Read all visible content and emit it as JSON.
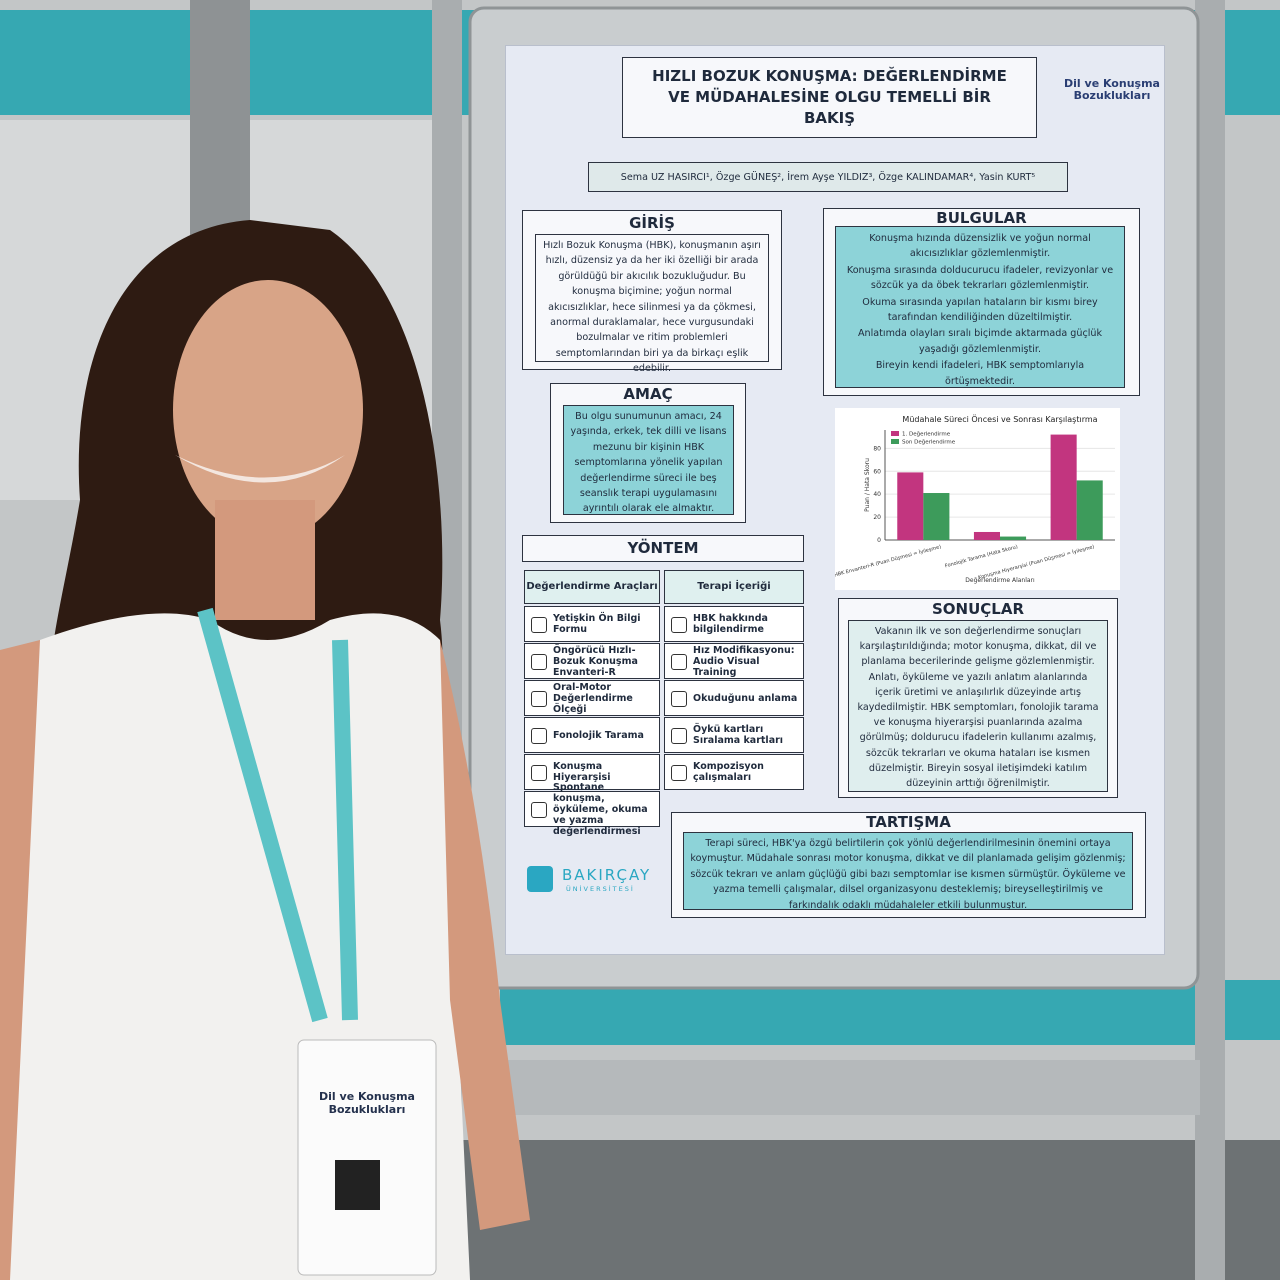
{
  "badge": {
    "title": "Dil ve Konuşma Bozuklukları"
  },
  "poster": {
    "title": "HIZLI BOZUK KONUŞMA: DEĞERLENDİRME VE MÜDAHALESİNE OLGU TEMELLİ BİR BAKIŞ",
    "congress": "Dil ve Konuşma Bozuklukları",
    "authors": "Sema UZ HASIRCI¹, Özge GÜNEŞ², İrem Ayşe YILDIZ³, Özge KALINDAMAR⁴, Yasin KURT⁵",
    "giris": {
      "heading": "GİRİŞ",
      "text": "Hızlı Bozuk Konuşma (HBK), konuşmanın aşırı hızlı, düzensiz ya da her iki özelliği bir arada görüldüğü bir akıcılık bozukluğudur. Bu konuşma biçimine; yoğun normal akıcısızlıklar, hece silinmesi ya da çökmesi, anormal duraklamalar, hece vurgusundaki bozulmalar ve ritim problemleri semptomlarından biri ya da birkaçı eşlik edebilir."
    },
    "amac": {
      "heading": "AMAÇ",
      "text": "Bu olgu sunumunun amacı, 24 yaşında, erkek, tek dilli ve lisans mezunu bir kişinin HBK semptomlarına yönelik yapılan değerlendirme süreci ile beş seanslık terapi uygulamasını ayrıntılı olarak ele almaktır."
    },
    "yontem": {
      "heading": "YÖNTEM",
      "columns": [
        {
          "heading": "Değerlendirme Araçları",
          "items": [
            "Yetişkin Ön Bilgi Formu",
            "Öngörücü Hızlı-Bozuk Konuşma Envanteri-R",
            "Oral-Motor Değerlendirme Ölçeği",
            "Fonolojik Tarama",
            "Konuşma Hiyerarşisi",
            "Spontane konuşma, öyküleme, okuma ve yazma değerlendirmesi"
          ]
        },
        {
          "heading": "Terapi İçeriği",
          "items": [
            "HBK hakkında bilgilendirme",
            "Hız Modifikasyonu: Audio Visual Training",
            "Okuduğunu anlama",
            "Öykü kartları Sıralama kartları",
            "Kompozisyon çalışmaları"
          ]
        }
      ]
    },
    "bulgular": {
      "heading": "BULGULAR",
      "items": [
        "Konuşma hızında düzensizlik ve yoğun normal akıcısızlıklar gözlemlenmiştir.",
        "Konuşma sırasında dolducurucu ifadeler, revizyonlar ve sözcük ya da öbek tekrarları gözlemlenmiştir.",
        "Okuma sırasında yapılan hataların bir kısmı birey tarafından kendiliğinden düzeltilmiştir.",
        "Anlatımda olayları sıralı biçimde aktarmada güçlük yaşadığı gözlemlenmiştir.",
        "Bireyin kendi ifadeleri, HBK semptomlarıyla örtüşmektedir."
      ]
    },
    "sonuclar": {
      "heading": "SONUÇLAR",
      "text": "Vakanın ilk ve son değerlendirme sonuçları karşılaştırıldığında; motor konuşma, dikkat, dil ve planlama becerilerinde gelişme gözlemlenmiştir. Anlatı, öyküleme ve yazılı anlatım alanlarında içerik üretimi ve anlaşılırlık düzeyinde artış kaydedilmiştir. HBK semptomları, fonolojik tarama ve konuşma hiyerarşisi puanlarında azalma görülmüş; doldurucu ifadelerin kullanımı azalmış, sözcük tekrarları ve okuma hataları ise kısmen düzelmiştir. Bireyin sosyal iletişimdeki katılım düzeyinin arttığı öğrenilmiştir."
    },
    "tartisma": {
      "heading": "TARTIŞMA",
      "text": "Terapi süreci, HBK'ya özgü belirtilerin çok yönlü değerlendirilmesinin önemini ortaya koymuştur. Müdahale sonrası motor konuşma, dikkat ve dil planlamada gelişim gözlenmiş; sözcük tekrarı ve anlam güçlüğü gibi bazı semptomlar ise kısmen sürmüştür. Öyküleme ve yazma temelli çalışmalar, dilsel organizasyonu desteklemiş; bireyselleştirilmiş ve farkındalık odaklı müdahaleler etkili bulunmuştur."
    },
    "university": "BAKIRÇAY",
    "university_sub": "ÜNİVERSİTESİ"
  },
  "chart_data": {
    "type": "bar",
    "title": "Müdahale Süreci Öncesi ve Sonrası Karşılaştırma",
    "x_label": "Değerlendirme Alanları",
    "y_label": "Puan / Hata Skoru",
    "categories": [
      "Öngörücü HBK Envanteri-R (Puan Düşmesi = İyileşme)",
      "Fonolojik Tarama (Hata Skoru)",
      "Konuşma Hiyerarşisi (Puan Düşmesi = İyileşme)"
    ],
    "series": [
      {
        "name": "1. Değerlendirme",
        "color": "#c2357f",
        "values": [
          59,
          7,
          92
        ]
      },
      {
        "name": "Son Değerlendirme",
        "color": "#3d9b5b",
        "values": [
          41,
          3,
          52
        ]
      }
    ],
    "ylim": [
      0,
      96
    ],
    "yticks": [
      0,
      20,
      40,
      60,
      80
    ],
    "grid": true,
    "legend": "upper-left"
  }
}
